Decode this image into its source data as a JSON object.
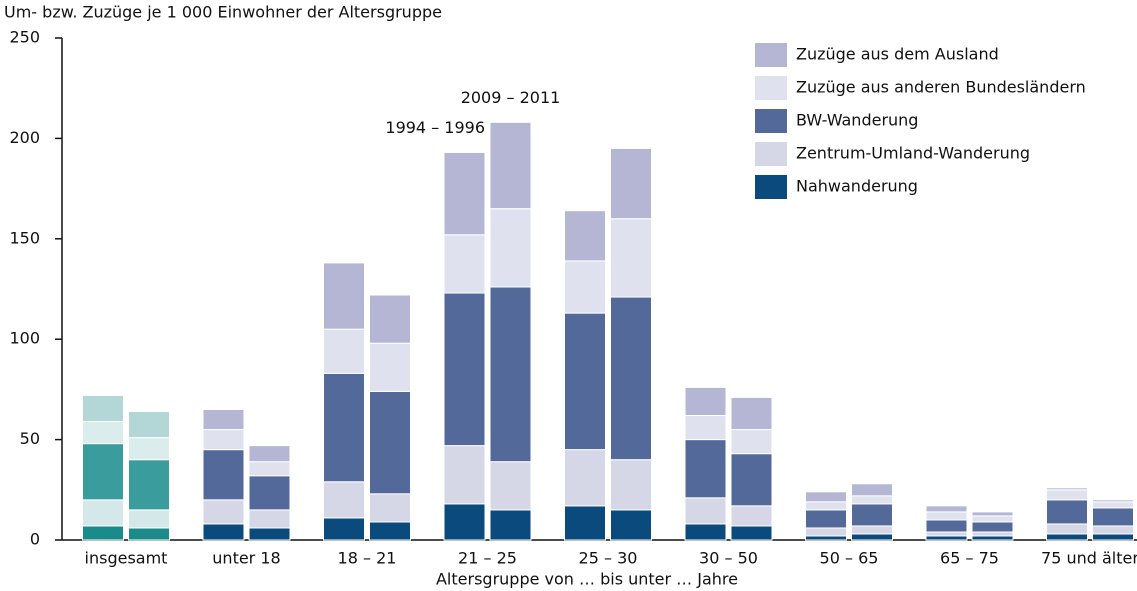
{
  "chart_data": {
    "type": "bar",
    "stacked": true,
    "title": "Um- bzw. Zuzüge je 1 000 Einwohner der Altersgruppe",
    "x_label": "Altersgruppe von … bis unter … Jahre",
    "categories": [
      "insgesamt",
      "unter 18",
      "18 – 21",
      "21 – 25",
      "25 – 30",
      "30 – 50",
      "50 – 65",
      "65 – 75",
      "75 und älter"
    ],
    "annotations": [
      {
        "text": "1994 – 1996",
        "category": 3,
        "period": 0
      },
      {
        "text": "2009 – 2011",
        "category": 3,
        "period": 1
      }
    ],
    "series": [
      {
        "name": "Nahwanderung",
        "color": "#0a4a7c",
        "colors": [
          "#1a8a8a",
          "#0a4a7c",
          "#0a4a7c",
          "#0a4a7c",
          "#0a4a7c",
          "#0a4a7c",
          "#0a4a7c",
          "#0a4a7c",
          "#0a4a7c"
        ],
        "values": [
          [
            7,
            6
          ],
          [
            8,
            6
          ],
          [
            11,
            9
          ],
          [
            18,
            15
          ],
          [
            17,
            15
          ],
          [
            8,
            7
          ],
          [
            2,
            3
          ],
          [
            2,
            2
          ],
          [
            3,
            3
          ]
        ]
      },
      {
        "name": "Zentrum-Umland-Wanderung",
        "color": "#d5d7e7",
        "colors": [
          "#d4e8e9",
          "#d5d7e7",
          "#d5d7e7",
          "#d5d7e7",
          "#d5d7e7",
          "#d5d7e7",
          "#d5d7e7",
          "#d5d7e7",
          "#d5d7e7"
        ],
        "values": [
          [
            13,
            9
          ],
          [
            12,
            9
          ],
          [
            18,
            14
          ],
          [
            29,
            24
          ],
          [
            28,
            25
          ],
          [
            13,
            10
          ],
          [
            4,
            4
          ],
          [
            2,
            2
          ],
          [
            5,
            4
          ]
        ]
      },
      {
        "name": "BW-Wanderung",
        "color": "#52699a",
        "colors": [
          "#3a9c9d",
          "#52699a",
          "#52699a",
          "#52699a",
          "#52699a",
          "#52699a",
          "#52699a",
          "#52699a",
          "#52699a"
        ],
        "values": [
          [
            28,
            25
          ],
          [
            25,
            17
          ],
          [
            54,
            51
          ],
          [
            76,
            87
          ],
          [
            68,
            81
          ],
          [
            29,
            26
          ],
          [
            9,
            11
          ],
          [
            6,
            5
          ],
          [
            12,
            9
          ]
        ]
      },
      {
        "name": "Zuzüge aus anderen Bundesländern",
        "color": "#e0e1ee",
        "colors": [
          "#dbeced",
          "#e0e1ee",
          "#e0e1ee",
          "#e0e1ee",
          "#e0e1ee",
          "#e0e1ee",
          "#e0e1ee",
          "#e0e1ee",
          "#e0e1ee"
        ],
        "values": [
          [
            11,
            11
          ],
          [
            10,
            7
          ],
          [
            22,
            24
          ],
          [
            29,
            39
          ],
          [
            26,
            39
          ],
          [
            12,
            12
          ],
          [
            4,
            4
          ],
          [
            4,
            3
          ],
          [
            5,
            3
          ]
        ]
      },
      {
        "name": "Zuzüge aus dem Ausland",
        "color": "#b4b6d4",
        "colors": [
          "#b3d6d7",
          "#b4b6d4",
          "#b4b6d4",
          "#b4b6d4",
          "#b4b6d4",
          "#b4b6d4",
          "#b4b6d4",
          "#b4b6d4",
          "#b4b6d4"
        ],
        "values": [
          [
            13,
            13
          ],
          [
            10,
            8
          ],
          [
            33,
            24
          ],
          [
            41,
            43
          ],
          [
            25,
            35
          ],
          [
            14,
            16
          ],
          [
            5,
            6
          ],
          [
            3,
            2
          ],
          [
            1,
            1
          ]
        ]
      }
    ],
    "ylim": [
      0,
      250
    ],
    "yticks": [
      0,
      50,
      100,
      150,
      200,
      250
    ]
  }
}
